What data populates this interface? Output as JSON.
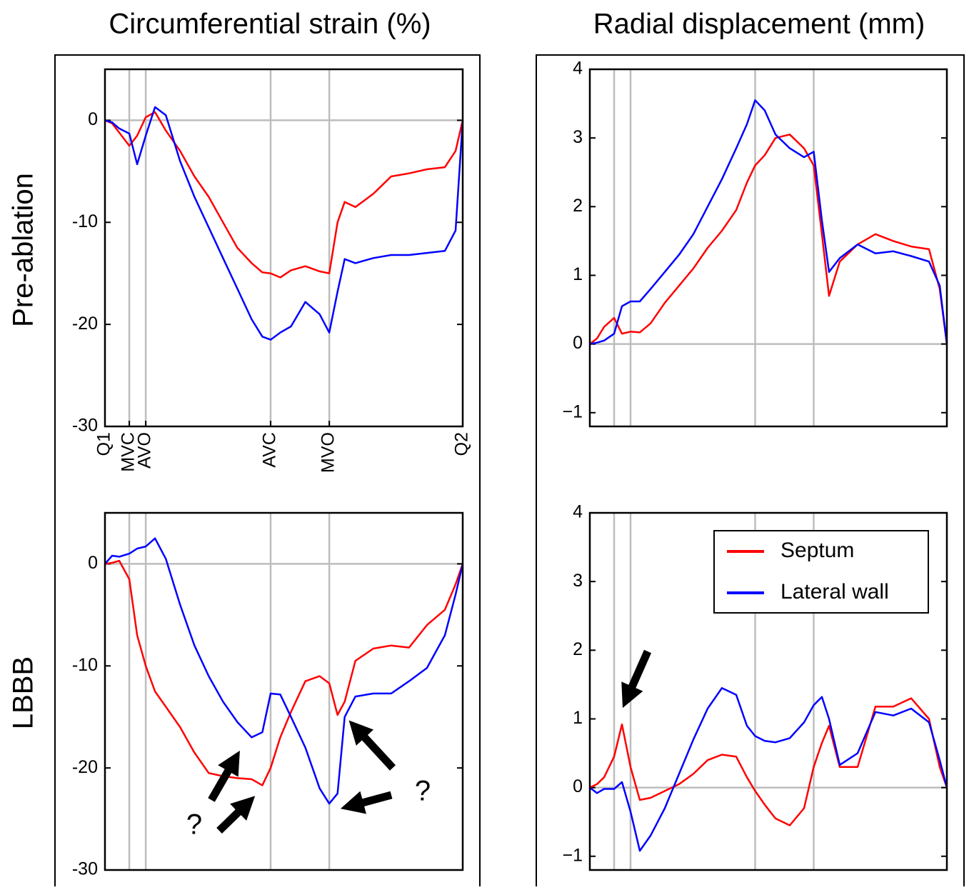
{
  "column_titles": [
    "Circumferential strain (%)",
    "Radial displacement (mm)"
  ],
  "row_labels": [
    "Pre-ablation",
    "LBBB"
  ],
  "chart_data": [
    {
      "type": "line",
      "x": [
        0,
        0.02,
        0.04,
        0.068,
        0.09,
        0.114,
        0.14,
        0.17,
        0.21,
        0.25,
        0.29,
        0.33,
        0.37,
        0.41,
        0.44,
        0.463,
        0.49,
        0.52,
        0.56,
        0.6,
        0.627,
        0.65,
        0.67,
        0.7,
        0.75,
        0.8,
        0.85,
        0.9,
        0.95,
        0.98,
        1
      ],
      "xlim": [
        0,
        1
      ],
      "ylim": [
        -30,
        5
      ],
      "yticks": [
        -30,
        -20,
        -10,
        0
      ],
      "xticks": [
        {
          "value": 0,
          "label": "Q1"
        },
        {
          "value": 0.068,
          "label": "MVC"
        },
        {
          "value": 0.114,
          "label": "AVO"
        },
        {
          "value": 0.463,
          "label": "AVC"
        },
        {
          "value": 0.627,
          "label": "MVO"
        },
        {
          "value": 1,
          "label": "Q2"
        }
      ],
      "vlines": [
        0.068,
        0.114,
        0.463,
        0.627
      ],
      "series": [
        {
          "name": "Septum",
          "color": "#ff0000",
          "values": [
            0,
            -0.3,
            -1.2,
            -2.5,
            -1.5,
            0.3,
            0.8,
            -1,
            -3,
            -5.5,
            -7.5,
            -10,
            -12.5,
            -14,
            -14.9,
            -15,
            -15.4,
            -14.7,
            -14.3,
            -14.8,
            -15,
            -10,
            -8,
            -8.5,
            -7.2,
            -5.5,
            -5.2,
            -4.8,
            -4.6,
            -3,
            0
          ]
        },
        {
          "name": "Lateral wall",
          "color": "#0000ff",
          "values": [
            0,
            -0.2,
            -0.8,
            -1.3,
            -4.3,
            -1.5,
            1.3,
            0.5,
            -4,
            -7.5,
            -10.5,
            -13.5,
            -16.5,
            -19.5,
            -21.2,
            -21.5,
            -20.8,
            -20.2,
            -17.8,
            -19,
            -20.8,
            -16.8,
            -13.6,
            -14,
            -13.5,
            -13.2,
            -13.2,
            -13,
            -12.8,
            -10.8,
            0
          ]
        }
      ]
    },
    {
      "type": "line",
      "x": [
        0,
        0.02,
        0.04,
        0.068,
        0.09,
        0.114,
        0.14,
        0.17,
        0.21,
        0.25,
        0.29,
        0.33,
        0.37,
        0.41,
        0.44,
        0.463,
        0.49,
        0.52,
        0.56,
        0.6,
        0.627,
        0.65,
        0.67,
        0.7,
        0.75,
        0.8,
        0.85,
        0.9,
        0.95,
        0.98,
        1
      ],
      "xlim": [
        0,
        1
      ],
      "ylim": [
        -1.2,
        4
      ],
      "yticks": [
        {
          "value": -1,
          "label": "−1"
        },
        0,
        1,
        2,
        3,
        4
      ],
      "vlines": [
        0.068,
        0.114,
        0.463,
        0.627
      ],
      "series": [
        {
          "name": "Septum",
          "color": "#ff0000",
          "values": [
            0,
            0.08,
            0.25,
            0.38,
            0.15,
            0.18,
            0.17,
            0.3,
            0.6,
            0.85,
            1.1,
            1.4,
            1.65,
            1.95,
            2.35,
            2.6,
            2.75,
            3.0,
            3.05,
            2.85,
            2.6,
            1.6,
            0.7,
            1.2,
            1.45,
            1.6,
            1.5,
            1.42,
            1.38,
            0.8,
            0
          ]
        },
        {
          "name": "Lateral wall",
          "color": "#0000ff",
          "values": [
            0,
            0.02,
            0.05,
            0.15,
            0.55,
            0.62,
            0.62,
            0.8,
            1.05,
            1.3,
            1.6,
            2.0,
            2.4,
            2.85,
            3.2,
            3.55,
            3.4,
            3.05,
            2.85,
            2.72,
            2.8,
            1.8,
            1.05,
            1.25,
            1.45,
            1.32,
            1.35,
            1.28,
            1.2,
            0.85,
            0
          ]
        }
      ]
    },
    {
      "type": "line",
      "x": [
        0,
        0.02,
        0.04,
        0.068,
        0.09,
        0.114,
        0.14,
        0.17,
        0.21,
        0.25,
        0.29,
        0.33,
        0.37,
        0.41,
        0.44,
        0.463,
        0.49,
        0.52,
        0.56,
        0.6,
        0.627,
        0.65,
        0.67,
        0.7,
        0.75,
        0.8,
        0.85,
        0.9,
        0.95,
        0.98,
        1
      ],
      "xlim": [
        0,
        1
      ],
      "ylim": [
        -30,
        5
      ],
      "yticks": [
        -30,
        -20,
        -10,
        0
      ],
      "vlines": [
        0.068,
        0.114,
        0.463,
        0.627
      ],
      "annotations": [
        "?",
        "?"
      ],
      "series": [
        {
          "name": "Septum",
          "color": "#ff0000",
          "values": [
            0,
            0.1,
            0.3,
            -1.5,
            -7,
            -10,
            -12.5,
            -14,
            -16,
            -18.5,
            -20.5,
            -20.8,
            -21,
            -21.1,
            -21.7,
            -20,
            -17,
            -14.5,
            -11.5,
            -11,
            -11.7,
            -14.8,
            -13.5,
            -9.5,
            -8.3,
            -8,
            -8.2,
            -6,
            -4.5,
            -2,
            0
          ]
        },
        {
          "name": "Lateral wall",
          "color": "#0000ff",
          "values": [
            0,
            0.8,
            0.7,
            1.0,
            1.5,
            1.7,
            2.5,
            0.5,
            -4,
            -8,
            -11,
            -13.5,
            -15.5,
            -17,
            -16.5,
            -12.7,
            -12.8,
            -15,
            -18,
            -22,
            -23.5,
            -22.5,
            -15,
            -13,
            -12.7,
            -12.7,
            -11.5,
            -10.2,
            -7,
            -3,
            0
          ]
        }
      ]
    },
    {
      "type": "line",
      "x": [
        0,
        0.02,
        0.04,
        0.068,
        0.09,
        0.114,
        0.14,
        0.17,
        0.21,
        0.25,
        0.29,
        0.33,
        0.37,
        0.41,
        0.44,
        0.463,
        0.49,
        0.52,
        0.56,
        0.6,
        0.627,
        0.65,
        0.67,
        0.7,
        0.75,
        0.8,
        0.85,
        0.9,
        0.95,
        0.98,
        1
      ],
      "xlim": [
        0,
        1
      ],
      "ylim": [
        -1.2,
        4
      ],
      "yticks": [
        {
          "value": -1,
          "label": "−1"
        },
        0,
        1,
        2,
        3,
        4
      ],
      "vlines": [
        0.068,
        0.114,
        0.463,
        0.627
      ],
      "legend": "upper right",
      "series": [
        {
          "name": "Septum",
          "color": "#ff0000",
          "values": [
            0,
            0.05,
            0.15,
            0.45,
            0.92,
            0.3,
            -0.18,
            -0.15,
            -0.05,
            0.05,
            0.2,
            0.4,
            0.48,
            0.45,
            0.15,
            -0.05,
            -0.25,
            -0.45,
            -0.55,
            -0.3,
            0.3,
            0.65,
            0.9,
            0.3,
            0.3,
            1.18,
            1.18,
            1.3,
            1.0,
            0.3,
            0
          ]
        },
        {
          "name": "Lateral wall",
          "color": "#0000ff",
          "values": [
            0,
            -0.08,
            -0.02,
            -0.02,
            0.08,
            -0.35,
            -0.92,
            -0.7,
            -0.3,
            0.2,
            0.7,
            1.15,
            1.45,
            1.35,
            0.9,
            0.75,
            0.68,
            0.66,
            0.72,
            0.95,
            1.2,
            1.32,
            1.0,
            0.33,
            0.5,
            1.1,
            1.05,
            1.15,
            0.95,
            0.4,
            0
          ]
        }
      ]
    }
  ]
}
